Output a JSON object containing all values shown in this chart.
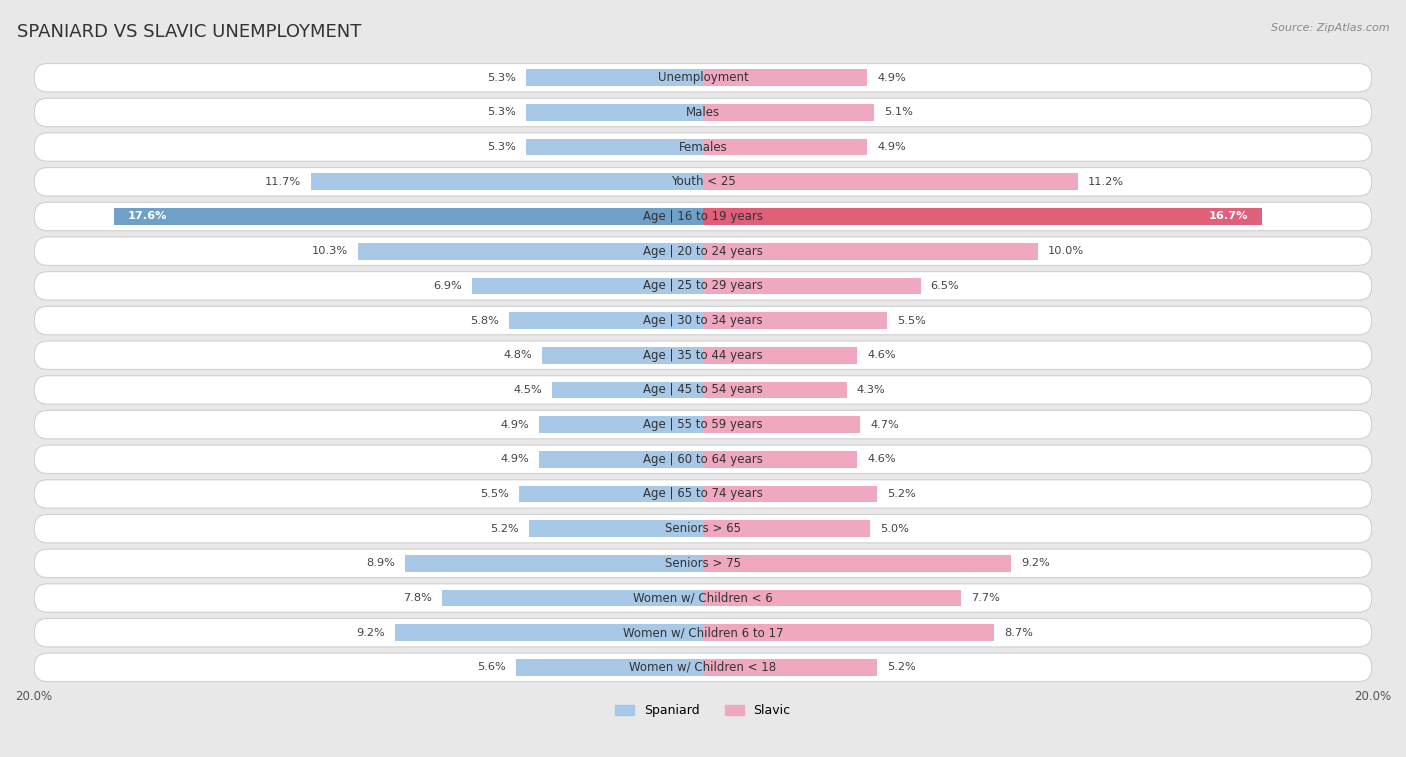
{
  "title": "SPANIARD VS SLAVIC UNEMPLOYMENT",
  "source": "Source: ZipAtlas.com",
  "categories": [
    "Unemployment",
    "Males",
    "Females",
    "Youth < 25",
    "Age | 16 to 19 years",
    "Age | 20 to 24 years",
    "Age | 25 to 29 years",
    "Age | 30 to 34 years",
    "Age | 35 to 44 years",
    "Age | 45 to 54 years",
    "Age | 55 to 59 years",
    "Age | 60 to 64 years",
    "Age | 65 to 74 years",
    "Seniors > 65",
    "Seniors > 75",
    "Women w/ Children < 6",
    "Women w/ Children 6 to 17",
    "Women w/ Children < 18"
  ],
  "spaniard": [
    5.3,
    5.3,
    5.3,
    11.7,
    17.6,
    10.3,
    6.9,
    5.8,
    4.8,
    4.5,
    4.9,
    4.9,
    5.5,
    5.2,
    8.9,
    7.8,
    9.2,
    5.6
  ],
  "slavic": [
    4.9,
    5.1,
    4.9,
    11.2,
    16.7,
    10.0,
    6.5,
    5.5,
    4.6,
    4.3,
    4.7,
    4.6,
    5.2,
    5.0,
    9.2,
    7.7,
    8.7,
    5.2
  ],
  "spaniard_color": "#a8c8e8",
  "slavic_color": "#f0a8be",
  "highlight_spaniard_color": "#6fa0c8",
  "highlight_slavic_color": "#e0607a",
  "axis_limit": 20.0,
  "bar_height": 0.48,
  "bg_color": "#e8e8e8",
  "row_bg_color": "#ffffff",
  "row_border_color": "#d0d0d0",
  "label_fontsize": 8.5,
  "title_fontsize": 13,
  "source_fontsize": 8,
  "category_fontsize": 8.5,
  "value_fontsize": 8.2,
  "highlight_idx": [
    4
  ]
}
